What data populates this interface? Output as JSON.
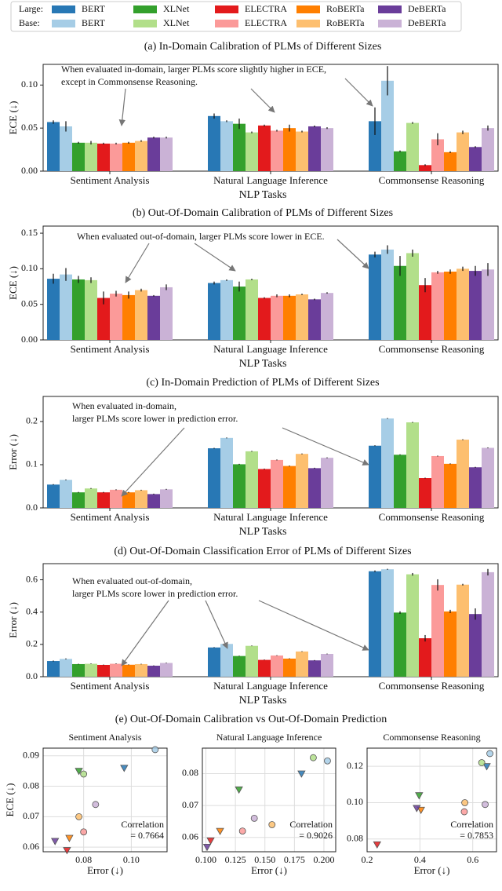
{
  "panel_e_title": "(e) Out-Of-Domain Calibration vs Out-Of-Domain Prediction",
  "chart_data": [
    {
      "type": "bar",
      "title": "(a) In-Domain Calibration of PLMs of Different Sizes",
      "xlabel": "NLP Tasks",
      "ylabel": "ECE (↓)",
      "legend_rows": [
        "Large:",
        "Base:"
      ],
      "annotation": [
        "When evaluated in-domain, larger PLMs score slightly higher in ECE,",
        "except in Commonsense Reasoning."
      ],
      "categories": [
        "Sentiment Analysis",
        "Natural Language Inference",
        "Commonsense Reasoning"
      ],
      "ylim": [
        0,
        0.124
      ],
      "yticks": [
        {
          "value": 0,
          "label": "0.00"
        },
        0.05,
        {
          "value": 0.1,
          "label": "0.10"
        }
      ],
      "series": [
        {
          "name": "BERT",
          "color": "#2878b5",
          "values": [
            0.057,
            0.064,
            0.058
          ],
          "errors": [
            0.002,
            0.003,
            0.016
          ]
        },
        {
          "name": "BERT",
          "color": "#a6cde6",
          "values": [
            0.052,
            0.058,
            0.105
          ],
          "errors": [
            0.006,
            0.001,
            0.017
          ]
        },
        {
          "name": "XLNet",
          "color": "#33a02c",
          "values": [
            0.033,
            0.055,
            0.023
          ],
          "errors": [
            0.001,
            0.006,
            0.001
          ]
        },
        {
          "name": "XLNet",
          "color": "#b2df8a",
          "values": [
            0.033,
            0.045,
            0.056
          ],
          "errors": [
            0.002,
            0.001,
            0.001
          ]
        },
        {
          "name": "ELECTRA",
          "color": "#e31a1c",
          "values": [
            0.032,
            0.053,
            0.007
          ],
          "errors": [
            0.001,
            0.001,
            0.001
          ]
        },
        {
          "name": "ELECTRA",
          "color": "#fb9a99",
          "values": [
            0.032,
            0.047,
            0.037
          ],
          "errors": [
            0.001,
            0.001,
            0.007
          ]
        },
        {
          "name": "RoBERTa",
          "color": "#ff7f00",
          "values": [
            0.033,
            0.05,
            0.022
          ],
          "errors": [
            0.001,
            0.004,
            0.001
          ]
        },
        {
          "name": "RoBERTa",
          "color": "#fdbf6f",
          "values": [
            0.035,
            0.046,
            0.045
          ],
          "errors": [
            0.001,
            0.001,
            0.002
          ]
        },
        {
          "name": "DeBERTa",
          "color": "#6a3d9a",
          "values": [
            0.039,
            0.052,
            0.028
          ],
          "errors": [
            0.001,
            0.001,
            0.001
          ]
        },
        {
          "name": "DeBERTa",
          "color": "#cab2d6",
          "values": [
            0.039,
            0.05,
            0.05
          ],
          "errors": [
            0.001,
            0.001,
            0.003
          ]
        }
      ]
    },
    {
      "type": "bar",
      "title": "(b) Out-Of-Domain Calibration of PLMs of Different Sizes",
      "xlabel": "NLP Tasks",
      "ylabel": "ECE (↓)",
      "annotation": [
        "When evaluated out-of-domain, larger PLMs score lower in ECE."
      ],
      "categories": [
        "Sentiment Analysis",
        "Natural Language Inference",
        "Commonsense Reasoning"
      ],
      "ylim": [
        0,
        0.16
      ],
      "yticks": [
        {
          "value": 0,
          "label": "0.00"
        },
        0.05,
        {
          "value": 0.1,
          "label": "0.10"
        },
        0.15
      ],
      "series": [
        {
          "color": "#2878b5",
          "values": [
            0.086,
            0.08,
            0.12
          ],
          "errors": [
            0.007,
            0.002,
            0.004
          ]
        },
        {
          "color": "#a6cde6",
          "values": [
            0.092,
            0.084,
            0.127
          ],
          "errors": [
            0.009,
            0.001,
            0.006
          ]
        },
        {
          "color": "#33a02c",
          "values": [
            0.085,
            0.075,
            0.104
          ],
          "errors": [
            0.005,
            0.007,
            0.014
          ]
        },
        {
          "color": "#b2df8a",
          "values": [
            0.084,
            0.085,
            0.122
          ],
          "errors": [
            0.004,
            0.001,
            0.005
          ]
        },
        {
          "color": "#e31a1c",
          "values": [
            0.059,
            0.059,
            0.077
          ],
          "errors": [
            0.009,
            0.001,
            0.01
          ]
        },
        {
          "color": "#fb9a99",
          "values": [
            0.065,
            0.062,
            0.095
          ],
          "errors": [
            0.004,
            0.002,
            0.002
          ]
        },
        {
          "color": "#ff7f00",
          "values": [
            0.063,
            0.062,
            0.096
          ],
          "errors": [
            0.005,
            0.002,
            0.003
          ]
        },
        {
          "color": "#fdbf6f",
          "values": [
            0.07,
            0.064,
            0.1
          ],
          "errors": [
            0.002,
            0.001,
            0.003
          ]
        },
        {
          "color": "#6a3d9a",
          "values": [
            0.062,
            0.057,
            0.097
          ],
          "errors": [
            0.001,
            0.001,
            0.007
          ]
        },
        {
          "color": "#cab2d6",
          "values": [
            0.074,
            0.066,
            0.099
          ],
          "errors": [
            0.004,
            0.001,
            0.009
          ]
        }
      ]
    },
    {
      "type": "bar",
      "title": "(c) In-Domain Prediction of PLMs of Different Sizes",
      "xlabel": "NLP Tasks",
      "ylabel": "Error (↓)",
      "annotation": [
        "When evaluated in-domain,",
        "larger PLMs score lower in prediction error."
      ],
      "categories": [
        "Sentiment Analysis",
        "Natural Language Inference",
        "Commonsense Reasoning"
      ],
      "ylim": [
        0,
        0.258
      ],
      "yticks": [
        {
          "value": 0,
          "label": "0.0"
        },
        0.1,
        0.2
      ],
      "series": [
        {
          "color": "#2878b5",
          "values": [
            0.054,
            0.138,
            0.144
          ],
          "errors": [
            0.001,
            0.001,
            0.001
          ]
        },
        {
          "color": "#a6cde6",
          "values": [
            0.065,
            0.162,
            0.207
          ],
          "errors": [
            0.001,
            0.001,
            0.001
          ]
        },
        {
          "color": "#33a02c",
          "values": [
            0.036,
            0.101,
            0.123
          ],
          "errors": [
            0.001,
            0.001,
            0.001
          ]
        },
        {
          "color": "#b2df8a",
          "values": [
            0.045,
            0.131,
            0.198
          ],
          "errors": [
            0.001,
            0.001,
            0.001
          ]
        },
        {
          "color": "#e31a1c",
          "values": [
            0.036,
            0.09,
            0.069
          ],
          "errors": [
            0.001,
            0.001,
            0.001
          ]
        },
        {
          "color": "#fb9a99",
          "values": [
            0.042,
            0.111,
            0.12
          ],
          "errors": [
            0.001,
            0.001,
            0.001
          ]
        },
        {
          "color": "#ff7f00",
          "values": [
            0.036,
            0.097,
            0.102
          ],
          "errors": [
            0.001,
            0.001,
            0.001
          ]
        },
        {
          "color": "#fdbf6f",
          "values": [
            0.041,
            0.125,
            0.158
          ],
          "errors": [
            0.001,
            0.001,
            0.001
          ]
        },
        {
          "color": "#6a3d9a",
          "values": [
            0.032,
            0.092,
            0.094
          ],
          "errors": [
            0.001,
            0.001,
            0.001
          ]
        },
        {
          "color": "#cab2d6",
          "values": [
            0.043,
            0.116,
            0.139
          ],
          "errors": [
            0.001,
            0.001,
            0.001
          ]
        }
      ]
    },
    {
      "type": "bar",
      "title": "(d) Out-Of-Domain Classification Error of PLMs of Different Sizes",
      "xlabel": "NLP Tasks",
      "ylabel": "Error (↓)",
      "annotation": [
        "When evaluated out-of-domain,",
        "larger PLMs score lower in prediction error."
      ],
      "categories": [
        "Sentiment Analysis",
        "Natural Language Inference",
        "Commonsense Reasoning"
      ],
      "ylim": [
        0,
        0.7
      ],
      "yticks": [
        {
          "value": 0,
          "label": "0.0"
        },
        0.2,
        0.4,
        0.6
      ],
      "series": [
        {
          "color": "#2878b5",
          "values": [
            0.097,
            0.181,
            0.653
          ],
          "errors": [
            0.003,
            0.002,
            0.005
          ]
        },
        {
          "color": "#a6cde6",
          "values": [
            0.11,
            0.203,
            0.665
          ],
          "errors": [
            0.003,
            0.002,
            0.003
          ]
        },
        {
          "color": "#33a02c",
          "values": [
            0.078,
            0.128,
            0.397
          ],
          "errors": [
            0.002,
            0.002,
            0.008
          ]
        },
        {
          "color": "#b2df8a",
          "values": [
            0.08,
            0.191,
            0.634
          ],
          "errors": [
            0.002,
            0.002,
            0.008
          ]
        },
        {
          "color": "#e31a1c",
          "values": [
            0.073,
            0.104,
            0.238
          ],
          "errors": [
            0.002,
            0.002,
            0.02
          ]
        },
        {
          "color": "#fb9a99",
          "values": [
            0.08,
            0.131,
            0.568
          ],
          "errors": [
            0.002,
            0.002,
            0.035
          ]
        },
        {
          "color": "#ff7f00",
          "values": [
            0.074,
            0.112,
            0.404
          ],
          "errors": [
            0.002,
            0.002,
            0.01
          ]
        },
        {
          "color": "#fdbf6f",
          "values": [
            0.078,
            0.156,
            0.57
          ],
          "errors": [
            0.002,
            0.002,
            0.005
          ]
        },
        {
          "color": "#6a3d9a",
          "values": [
            0.068,
            0.101,
            0.388
          ],
          "errors": [
            0.002,
            0.002,
            0.035
          ]
        },
        {
          "color": "#cab2d6",
          "values": [
            0.085,
            0.141,
            0.647
          ],
          "errors": [
            0.002,
            0.002,
            0.02
          ]
        }
      ]
    },
    {
      "type": "scatter",
      "title": "Sentiment Analysis",
      "xlabel": "Error (↓)",
      "ylabel": "ECE (↓)",
      "grid": true,
      "annotation": [
        "Correlation",
        "= 0.7664"
      ],
      "xlim": [
        0.063,
        0.115
      ],
      "xticks": [
        0.08,
        {
          "value": 0.1,
          "label": "0.10"
        }
      ],
      "ylim": [
        0.0585,
        0.0925
      ],
      "yticks": [
        0.06,
        0.07,
        0.08,
        0.09
      ],
      "x": [
        0.097,
        0.11,
        0.078,
        0.08,
        0.073,
        0.08,
        0.074,
        0.078,
        0.068,
        0.085
      ],
      "values": [
        0.086,
        0.092,
        0.085,
        0.084,
        0.059,
        0.065,
        0.063,
        0.07,
        0.062,
        0.074
      ],
      "colors": [
        "#2878b5",
        "#a6cde6",
        "#33a02c",
        "#b2df8a",
        "#e31a1c",
        "#fb9a99",
        "#ff7f00",
        "#fdbf6f",
        "#6a3d9a",
        "#cab2d6"
      ],
      "markers": [
        "triangle",
        "circle",
        "triangle",
        "circle",
        "triangle",
        "circle",
        "triangle",
        "circle",
        "triangle",
        "circle"
      ]
    },
    {
      "type": "scatter",
      "title": "Natural Language Inference",
      "xlabel": "Error (↓)",
      "grid": true,
      "annotation": [
        "Correlation",
        "= 0.9026"
      ],
      "xlim": [
        0.097,
        0.21
      ],
      "xticks": [
        {
          "value": 0.1,
          "label": "0.100"
        },
        0.125,
        {
          "value": 0.15,
          "label": "0.150"
        },
        0.175,
        {
          "value": 0.2,
          "label": "0.200"
        }
      ],
      "ylim": [
        0.0555,
        0.088
      ],
      "yticks": [
        0.06,
        0.07,
        0.08
      ],
      "x": [
        0.181,
        0.203,
        0.128,
        0.191,
        0.104,
        0.131,
        0.112,
        0.156,
        0.101,
        0.141
      ],
      "values": [
        0.08,
        0.084,
        0.075,
        0.085,
        0.059,
        0.062,
        0.062,
        0.064,
        0.057,
        0.066
      ],
      "colors": [
        "#2878b5",
        "#a6cde6",
        "#33a02c",
        "#b2df8a",
        "#e31a1c",
        "#fb9a99",
        "#ff7f00",
        "#fdbf6f",
        "#6a3d9a",
        "#cab2d6"
      ],
      "markers": [
        "triangle",
        "circle",
        "triangle",
        "circle",
        "triangle",
        "circle",
        "triangle",
        "circle",
        "triangle",
        "circle"
      ]
    },
    {
      "type": "scatter",
      "title": "Commonsense Reasoning",
      "xlabel": "Error (↓)",
      "grid": true,
      "annotation": [
        "Correlation",
        "= 0.7853"
      ],
      "xlim": [
        0.2,
        0.69
      ],
      "xticks": [
        0.2,
        0.4,
        0.6
      ],
      "ylim": [
        0.073,
        0.13
      ],
      "yticks": [
        0.08,
        {
          "value": 0.1,
          "label": "0.10"
        },
        0.12
      ],
      "x": [
        0.653,
        0.665,
        0.397,
        0.634,
        0.238,
        0.568,
        0.404,
        0.57,
        0.388,
        0.647
      ],
      "values": [
        0.12,
        0.127,
        0.104,
        0.122,
        0.077,
        0.095,
        0.096,
        0.1,
        0.097,
        0.099
      ],
      "colors": [
        "#2878b5",
        "#a6cde6",
        "#33a02c",
        "#b2df8a",
        "#e31a1c",
        "#fb9a99",
        "#ff7f00",
        "#fdbf6f",
        "#6a3d9a",
        "#cab2d6"
      ],
      "markers": [
        "triangle",
        "circle",
        "triangle",
        "circle",
        "triangle",
        "circle",
        "triangle",
        "circle",
        "triangle",
        "circle"
      ]
    }
  ]
}
